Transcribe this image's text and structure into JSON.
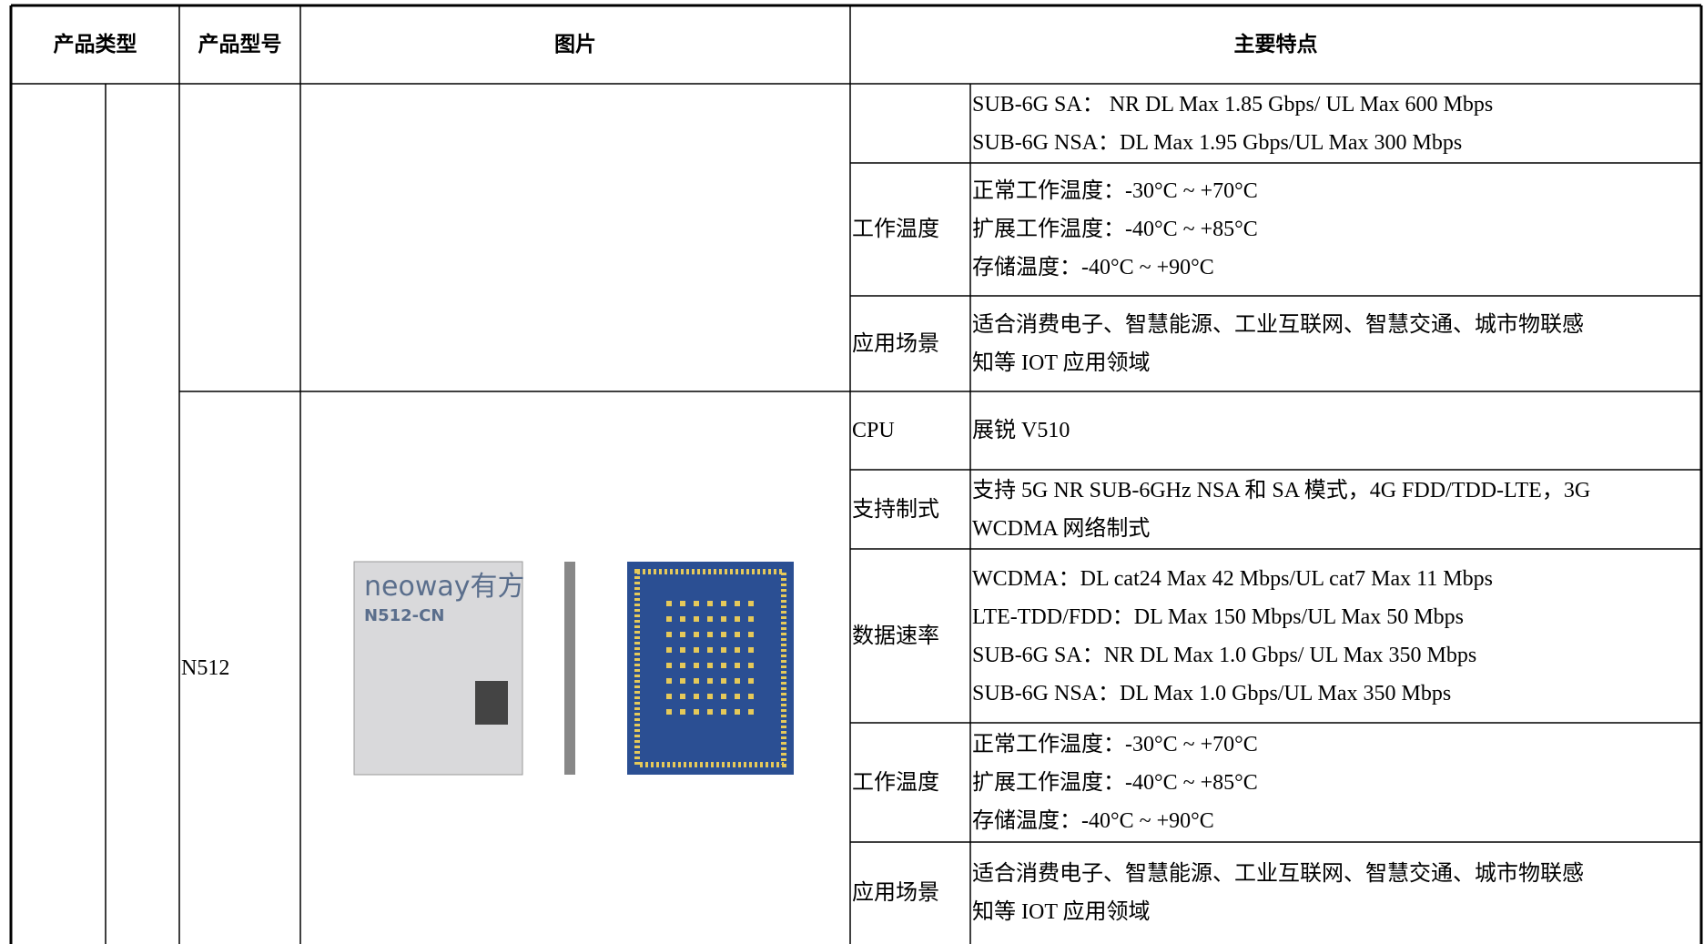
{
  "header": {
    "product_type": "产品类型",
    "product_model": "产品型号",
    "picture": "图片",
    "features": "主要特点"
  },
  "previous_product": {
    "features": [
      {
        "lines": [
          "SUB-6G SA：  NR DL Max 1.85 Gbps/ UL Max 600 Mbps",
          "SUB-6G NSA：DL Max 1.95 Gbps/UL Max 300 Mbps"
        ]
      },
      {
        "label": "工作温度",
        "lines": [
          "正常工作温度：-30°C ~ +70°C",
          "扩展工作温度：-40°C ~ +85°C",
          "存储温度：-40°C ~ +90°C"
        ]
      },
      {
        "label": "应用场景",
        "lines": [
          "适合消费电子、智慧能源、工业互联网、智慧交通、城市物联感",
          "知等 IOT 应用领域"
        ]
      }
    ]
  },
  "product": {
    "model": "N512",
    "image": {
      "brand": "neoway有方",
      "module_label": "N512-CN"
    },
    "features": [
      {
        "label": "CPU",
        "lines": [
          "展锐 V510"
        ]
      },
      {
        "label": "支持制式",
        "lines": [
          "支持 5G NR SUB-6GHz NSA 和 SA  模式，4G FDD/TDD-LTE，3G",
          "WCDMA 网络制式"
        ]
      },
      {
        "label": "数据速率",
        "lines": [
          "WCDMA：DL cat24 Max 42 Mbps/UL cat7 Max 11 Mbps",
          "LTE-TDD/FDD：DL Max 150 Mbps/UL Max 50 Mbps",
          "SUB-6G SA：NR DL Max 1.0 Gbps/ UL Max 350 Mbps",
          "SUB-6G NSA：DL Max 1.0 Gbps/UL Max 350 Mbps"
        ]
      },
      {
        "label": "工作温度",
        "lines": [
          "正常工作温度：-30°C ~ +70°C",
          "扩展工作温度：-40°C ~ +85°C",
          "存储温度：-40°C ~ +90°C"
        ]
      },
      {
        "label": "应用场景",
        "lines": [
          "适合消费电子、智慧能源、工业互联网、智慧交通、城市物联感",
          "知等 IOT 应用领域"
        ]
      }
    ]
  }
}
